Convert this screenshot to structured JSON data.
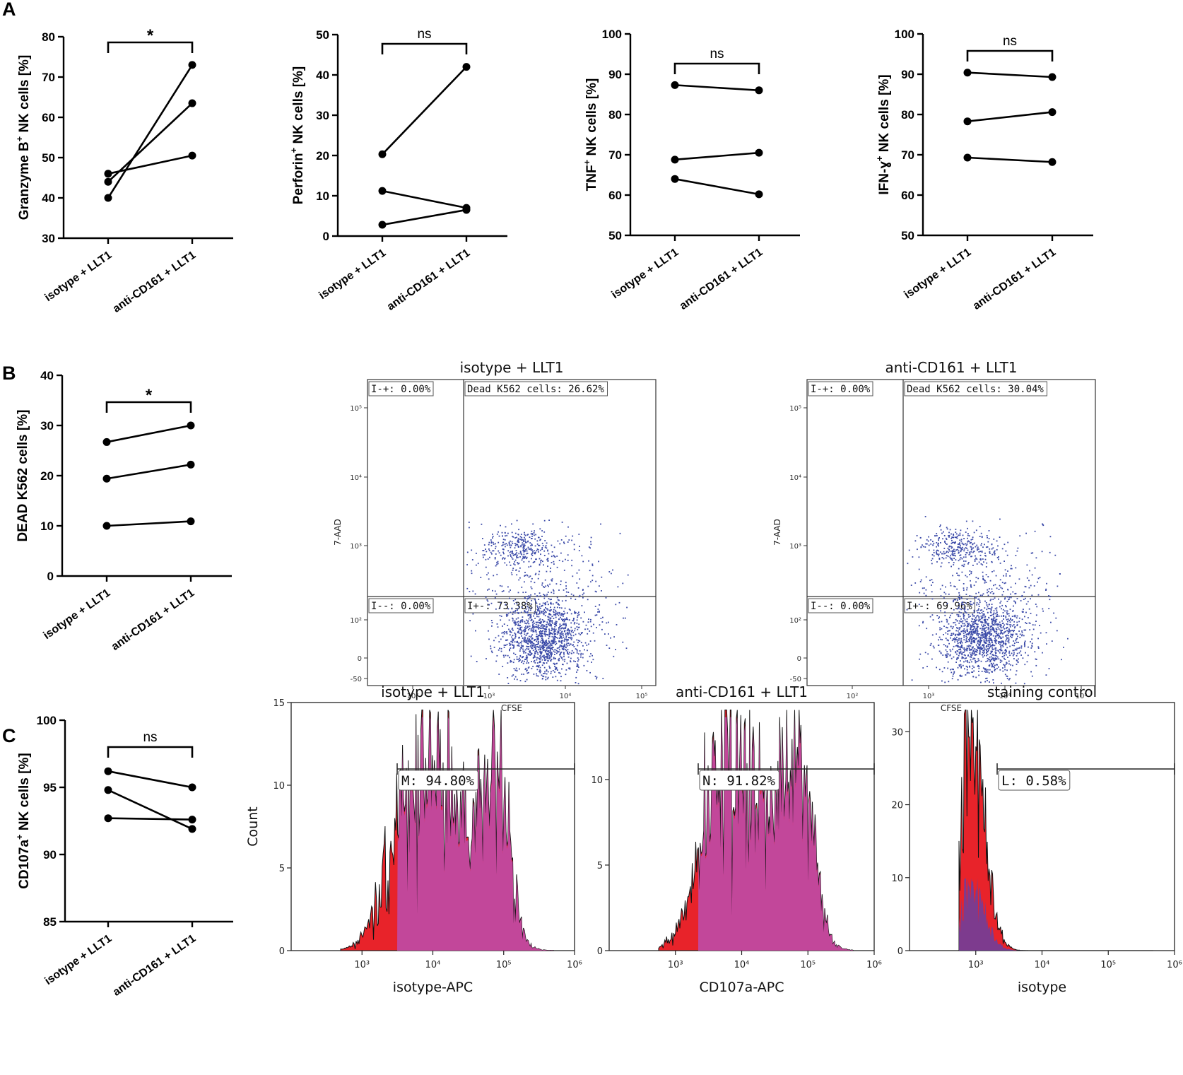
{
  "panel_labels": [
    "A",
    "B",
    "C"
  ],
  "chart_data": [
    {
      "id": "a1",
      "type": "paired-line",
      "panel": "A",
      "xlabels": [
        "isotype + LLT1",
        "anti-CD161 + LLT1"
      ],
      "ylabel_parts": [
        "Granzyme B",
        "+",
        " NK cells [%]"
      ],
      "ylim": [
        30,
        80
      ],
      "yticks": [
        30,
        40,
        50,
        60,
        70,
        80
      ],
      "sig": "*",
      "series": [
        [
          40,
          73
        ],
        [
          44,
          63.5
        ],
        [
          46,
          50.5
        ]
      ]
    },
    {
      "id": "a2",
      "type": "paired-line",
      "panel": "A",
      "xlabels": [
        "isotype + LLT1",
        "anti-CD161 + LLT1"
      ],
      "ylabel_parts": [
        "Perforin",
        "+",
        " NK cells [%]"
      ],
      "ylim": [
        0,
        50
      ],
      "yticks": [
        0,
        10,
        20,
        30,
        40,
        50
      ],
      "sig": "ns",
      "series": [
        [
          20.3,
          42
        ],
        [
          11.2,
          7
        ],
        [
          2.8,
          6.5
        ]
      ]
    },
    {
      "id": "a3",
      "type": "paired-line",
      "panel": "A",
      "xlabels": [
        "isotype + LLT1",
        "anti-CD161 + LLT1"
      ],
      "ylabel_parts": [
        "TNF",
        "+",
        " NK cells [%]"
      ],
      "ylim": [
        50,
        100
      ],
      "yticks": [
        50,
        60,
        70,
        80,
        90,
        100
      ],
      "sig": "ns",
      "series": [
        [
          87.3,
          86
        ],
        [
          68.8,
          70.5
        ],
        [
          64,
          60.2
        ]
      ]
    },
    {
      "id": "a4",
      "type": "paired-line",
      "panel": "A",
      "xlabels": [
        "isotype + LLT1",
        "anti-CD161 + LLT1"
      ],
      "ylabel_parts": [
        "IFN-ɣ",
        "+",
        " NK cells [%]"
      ],
      "ylim": [
        50,
        100
      ],
      "yticks": [
        50,
        60,
        70,
        80,
        90,
        100
      ],
      "sig": "ns",
      "series": [
        [
          90.4,
          89.3
        ],
        [
          78.3,
          80.6
        ],
        [
          69.3,
          68.2
        ]
      ]
    },
    {
      "id": "b1",
      "type": "paired-line",
      "panel": "B",
      "xlabels": [
        "isotype + LLT1",
        "anti-CD161 + LLT1"
      ],
      "ylabel_parts": [
        "DEAD K562 cells [%]",
        "",
        ""
      ],
      "ylim": [
        0,
        40
      ],
      "yticks": [
        0,
        10,
        20,
        30,
        40
      ],
      "sig": "*",
      "series": [
        [
          26.7,
          30
        ],
        [
          19.4,
          22.2
        ],
        [
          10,
          10.9
        ]
      ]
    },
    {
      "id": "c1",
      "type": "paired-line",
      "panel": "C",
      "xlabels": [
        "isotype + LLT1",
        "anti-CD161 + LLT1"
      ],
      "ylabel_parts": [
        "CD107a",
        "+",
        " NK cells [%]"
      ],
      "ylim": [
        85,
        100
      ],
      "yticks": [
        85,
        90,
        95,
        100
      ],
      "sig": "ns",
      "series": [
        [
          96.2,
          95
        ],
        [
          94.8,
          91.9
        ],
        [
          92.7,
          92.6
        ]
      ]
    },
    {
      "id": "f1",
      "type": "scatter",
      "panel": "B",
      "title": "isotype + LLT1",
      "xlabel": "CFSE",
      "ylabel": "7-AAD",
      "xticks": [
        "10²",
        "10³",
        "10⁴",
        "10⁵"
      ],
      "yticks": [
        "10⁵",
        "10⁴",
        "10³",
        "10²",
        "0",
        "-50"
      ],
      "quadrants": {
        "ul": "I-+: 0.00%",
        "ur": "Dead K562 cells: 26.62%",
        "ll": "I--: 0.00%",
        "lr": "I+-: 73.38%"
      }
    },
    {
      "id": "f2",
      "type": "scatter",
      "panel": "B",
      "title": "anti-CD161 + LLT1",
      "xlabel": "CFSE",
      "ylabel": "7-AAD",
      "xticks": [
        "10²",
        "10³",
        "10⁴",
        "10⁵"
      ],
      "yticks": [
        "10⁵",
        "10⁴",
        "10³",
        "10²",
        "0",
        "-50"
      ],
      "quadrants": {
        "ul": "I-+: 0.00%",
        "ur": "Dead K562 cells: 30.04%",
        "ll": "I--: 0.00%",
        "lr": "I+-: 69.96%"
      }
    },
    {
      "id": "h1",
      "type": "histogram",
      "panel": "C",
      "title": "isotype + LLT1",
      "xlabel": "isotype-APC",
      "ylabel": "Count",
      "ylim": [
        0,
        15
      ],
      "yticks": [
        0,
        5,
        10,
        15
      ],
      "xticks": [
        "10³",
        "10⁴",
        "10⁵",
        "10⁶"
      ],
      "gate": "M: 94.80%",
      "series": {
        "red_profile": "broad bimodal",
        "magenta_profile": "broad bimodal"
      }
    },
    {
      "id": "h2",
      "type": "histogram",
      "panel": "C",
      "title": "anti-CD161 + LLT1",
      "xlabel": "CD107a-APC",
      "ylabel": "",
      "ylim": [
        0,
        14.5
      ],
      "yticks": [
        0,
        5,
        10
      ],
      "xticks": [
        "10³",
        "10⁴",
        "10⁵",
        "10⁶"
      ],
      "gate": "N: 91.82%",
      "series": {
        "red_profile": "broad bimodal",
        "magenta_profile": "broad bimodal"
      }
    },
    {
      "id": "h3",
      "type": "histogram",
      "panel": "C",
      "title": "staining control",
      "xlabel": "isotype",
      "ylabel": "",
      "ylim": [
        0,
        34
      ],
      "yticks": [
        0,
        10,
        20,
        30
      ],
      "xticks": [
        "10³",
        "10⁴",
        "10⁵",
        "10⁶"
      ],
      "gate": "L: 0.58%",
      "series": {
        "red_profile": "narrow peak",
        "magenta_profile": "small"
      }
    }
  ],
  "colors": {
    "scatter_dot": "#3b4aa8",
    "hist_red": "#e8232a",
    "hist_magenta": "#c2479a",
    "hist_blue": "#6a3fa0",
    "axis": "#000000"
  }
}
